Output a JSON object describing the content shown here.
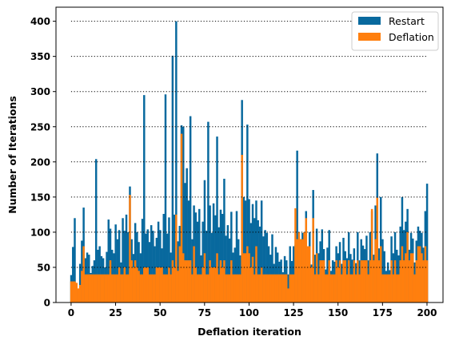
{
  "chart_data": {
    "type": "bar",
    "title": "",
    "xlabel": "Deflation iteration",
    "ylabel": "Number of Iterations",
    "xlim": [
      -8.5,
      209
    ],
    "ylim": [
      0,
      420
    ],
    "xticks": [
      0,
      25,
      50,
      75,
      100,
      125,
      150,
      175,
      200
    ],
    "yticks": [
      0,
      50,
      100,
      150,
      200,
      250,
      300,
      350,
      400
    ],
    "grid": {
      "axis": "y",
      "style": "dotted",
      "lines": [
        50,
        100,
        150,
        200,
        250,
        300,
        350,
        400
      ]
    },
    "legend": {
      "position": "top-right",
      "entries": [
        "Restart",
        "Deflation"
      ]
    },
    "colors": {
      "Restart": "#08699e",
      "Deflation": "#ff7f0e"
    },
    "x": [
      0,
      1,
      2,
      3,
      4,
      5,
      6,
      7,
      8,
      9,
      10,
      11,
      12,
      13,
      14,
      15,
      16,
      17,
      18,
      19,
      20,
      21,
      22,
      23,
      24,
      25,
      26,
      27,
      28,
      29,
      30,
      31,
      32,
      33,
      34,
      35,
      36,
      37,
      38,
      39,
      40,
      41,
      42,
      43,
      44,
      45,
      46,
      47,
      48,
      49,
      50,
      51,
      52,
      53,
      54,
      55,
      56,
      57,
      58,
      59,
      60,
      61,
      62,
      63,
      64,
      65,
      66,
      67,
      68,
      69,
      70,
      71,
      72,
      73,
      74,
      75,
      76,
      77,
      78,
      79,
      80,
      81,
      82,
      83,
      84,
      85,
      86,
      87,
      88,
      89,
      90,
      91,
      92,
      93,
      94,
      95,
      96,
      97,
      98,
      99,
      100,
      101,
      102,
      103,
      104,
      105,
      106,
      107,
      108,
      109,
      110,
      111,
      112,
      113,
      114,
      115,
      116,
      117,
      118,
      119,
      120,
      121,
      122,
      123,
      124,
      125,
      126,
      127,
      128,
      129,
      130,
      131,
      132,
      133,
      134,
      135,
      136,
      137,
      138,
      139,
      140,
      141,
      142,
      143,
      144,
      145,
      146,
      147,
      148,
      149,
      150,
      151,
      152,
      153,
      154,
      155,
      156,
      157,
      158,
      159,
      160,
      161,
      162,
      163,
      164,
      165,
      166,
      167,
      168,
      169,
      170,
      171,
      172,
      173,
      174,
      175,
      176,
      177,
      178,
      179,
      180,
      181,
      182,
      183,
      184,
      185,
      186,
      187,
      188,
      189,
      190,
      191,
      192,
      193,
      194,
      195,
      196,
      197,
      198,
      199,
      200
    ],
    "series": [
      {
        "name": "Restart",
        "values": [
          39,
          79,
          120,
          27,
          18,
          55,
          88,
          135,
          63,
          71,
          68,
          42,
          52,
          60,
          204,
          75,
          80,
          66,
          63,
          50,
          72,
          118,
          105,
          75,
          70,
          111,
          90,
          103,
          57,
          120,
          102,
          125,
          100,
          165,
          90,
          69,
          113,
          100,
          86,
          70,
          119,
          295,
          98,
          104,
          86,
          110,
          102,
          80,
          92,
          115,
          103,
          77,
          126,
          296,
          98,
          121,
          71,
          351,
          125,
          400,
          87,
          109,
          252,
          250,
          170,
          191,
          145,
          265,
          90,
          138,
          128,
          115,
          133,
          67,
          115,
          174,
          102,
          257,
          138,
          99,
          141,
          124,
          236,
          107,
          132,
          126,
          176,
          95,
          110,
          91,
          129,
          71,
          78,
          130,
          90,
          67,
          288,
          150,
          145,
          253,
          147,
          113,
          140,
          120,
          145,
          117,
          108,
          145,
          94,
          103,
          99,
          80,
          68,
          97,
          55,
          79,
          71,
          58,
          61,
          43,
          66,
          60,
          40,
          80,
          59,
          80,
          82,
          216,
          96,
          90,
          99,
          100,
          130,
          70,
          100,
          54,
          160,
          68,
          105,
          70,
          87,
          104,
          76,
          47,
          78,
          103,
          45,
          60,
          58,
          80,
          70,
          86,
          55,
          92,
          73,
          63,
          100,
          69,
          61,
          77,
          56,
          100,
          60,
          90,
          81,
          76,
          95,
          60,
          100,
          130,
          68,
          138,
          212,
          77,
          150,
          90,
          73,
          45,
          57,
          46,
          94,
          70,
          100,
          75,
          67,
          108,
          150,
          103,
          115,
          133,
          75,
          99,
          91,
          57,
          88,
          108,
          102,
          99,
          78,
          130,
          169
        ]
      },
      {
        "name": "Deflation",
        "values": [
          30,
          30,
          30,
          28,
          20,
          25,
          45,
          80,
          40,
          40,
          40,
          40,
          40,
          40,
          40,
          40,
          40,
          40,
          40,
          40,
          40,
          40,
          60,
          40,
          40,
          40,
          40,
          50,
          40,
          40,
          50,
          40,
          40,
          153,
          60,
          50,
          60,
          50,
          45,
          40,
          40,
          50,
          50,
          50,
          40,
          40,
          40,
          40,
          50,
          50,
          50,
          50,
          40,
          40,
          40,
          50,
          40,
          60,
          50,
          125,
          45,
          80,
          240,
          70,
          60,
          60,
          60,
          60,
          40,
          80,
          50,
          40,
          40,
          40,
          50,
          70,
          40,
          40,
          60,
          50,
          50,
          50,
          70,
          40,
          60,
          50,
          60,
          40,
          40,
          40,
          60,
          40,
          40,
          40,
          40,
          40,
          210,
          70,
          70,
          80,
          70,
          50,
          65,
          40,
          80,
          40,
          40,
          50,
          40,
          40,
          40,
          40,
          40,
          40,
          40,
          40,
          40,
          40,
          40,
          40,
          40,
          40,
          20,
          40,
          40,
          40,
          134,
          90,
          100,
          90,
          90,
          100,
          120,
          80,
          80,
          50,
          120,
          40,
          70,
          40,
          60,
          60,
          60,
          40,
          40,
          60,
          40,
          40,
          40,
          60,
          50,
          60,
          40,
          60,
          60,
          40,
          60,
          40,
          40,
          60,
          40,
          60,
          40,
          60,
          60,
          60,
          60,
          40,
          60,
          133,
          60,
          90,
          149,
          60,
          80,
          40,
          40,
          40,
          40,
          40,
          60,
          40,
          60,
          40,
          40,
          60,
          80,
          60,
          70,
          100,
          60,
          70,
          70,
          40,
          60,
          80,
          80,
          70,
          60,
          80,
          60
        ]
      }
    ]
  }
}
